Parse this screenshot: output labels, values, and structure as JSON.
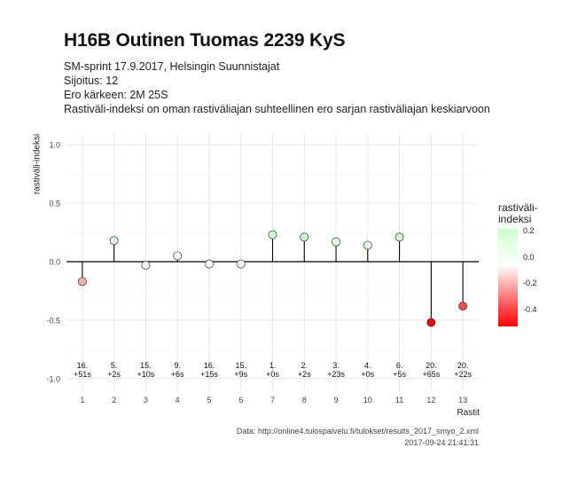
{
  "header": {
    "title": "H16B Outinen Tuomas 2239 KyS",
    "subtitle_lines": [
      "SM-sprint 17.9.2017, Helsingin Suunnistajat",
      "Sijoitus: 12",
      "Ero kärkeen: 2M 25S",
      "Rastiväli-indeksi on oman rastiväliajan suhteellinen ero sarjan rastiväliajan keskiarvoon"
    ]
  },
  "caption": {
    "source": "Data: http://online4.tulospalvelu.fi/tulokset/results_2017_smyo_2.xml",
    "timestamp": "2017-09-24 21:41:31"
  },
  "legend": {
    "title": "rastiväli-\nindeksi",
    "labels": [
      "0.2",
      "0.0",
      "-0.2",
      "-0.4"
    ],
    "color_high": "#ccffcc",
    "color_mid": "#ffffff",
    "color_low": "#ff0000"
  },
  "chart_data": {
    "type": "lollipop",
    "title": "H16B Outinen Tuomas 2239 KyS",
    "xlabel": "Rastit",
    "ylabel": "rastiväli-indeksi",
    "x": [
      1,
      2,
      3,
      4,
      5,
      6,
      7,
      8,
      9,
      10,
      11,
      12,
      13
    ],
    "xticks": [
      "1",
      "2",
      "3",
      "4",
      "5",
      "6",
      "7",
      "8",
      "9",
      "10",
      "11",
      "12",
      "13"
    ],
    "yticks": [
      "1.0",
      "0.5",
      "0.0",
      "-0.5",
      "-1.0"
    ],
    "ylim": [
      -1.0,
      1.0
    ],
    "values": [
      -0.17,
      0.18,
      -0.03,
      0.05,
      -0.02,
      -0.02,
      0.23,
      0.21,
      0.17,
      0.14,
      0.21,
      -0.52,
      -0.38
    ],
    "annotations": [
      [
        "16.",
        "+51s"
      ],
      [
        "5.",
        "+2s"
      ],
      [
        "15.",
        "+10s"
      ],
      [
        "9.",
        "+6s"
      ],
      [
        "16.",
        "+15s"
      ],
      [
        "15.",
        "+9s"
      ],
      [
        "1.",
        "+0s"
      ],
      [
        "2.",
        "+2s"
      ],
      [
        "3.",
        "+23s"
      ],
      [
        "4.",
        "+0s"
      ],
      [
        "6.",
        "+5s"
      ],
      [
        "20.",
        "+65s"
      ],
      [
        "20.",
        "+22s"
      ]
    ],
    "grid": true,
    "legend_position": "right"
  }
}
